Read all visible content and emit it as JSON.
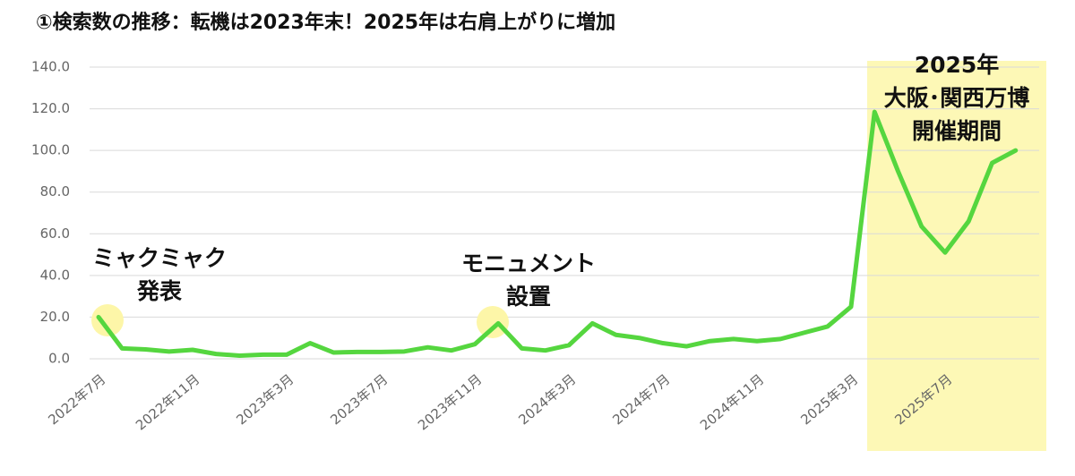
{
  "chart_data": {
    "type": "line",
    "title": "①検索数の推移：転機は2023年末！2025年は右肩上がりに増加",
    "categories": [
      "2022年7月",
      null,
      null,
      null,
      "2022年11月",
      null,
      null,
      null,
      "2023年3月",
      null,
      null,
      null,
      "2023年7月",
      null,
      null,
      null,
      "2023年11月",
      null,
      null,
      null,
      "2024年3月",
      null,
      null,
      null,
      "2024年7月",
      null,
      null,
      null,
      "2024年11月",
      null,
      null,
      null,
      "2025年3月",
      null,
      null,
      null,
      "2025年7月",
      null,
      null,
      null
    ],
    "values": [
      20,
      5,
      4.5,
      3.5,
      4.3,
      2.3,
      1.5,
      2,
      2,
      7.5,
      3,
      3.3,
      3.3,
      3.5,
      5.5,
      4,
      7,
      17,
      5,
      4,
      6.5,
      17,
      11.5,
      10,
      7.5,
      6,
      8.5,
      9.5,
      8.5,
      9.5,
      12.5,
      15.5,
      25,
      118.5,
      90,
      63.5,
      51,
      66,
      94,
      100
    ],
    "color": "#55d63f",
    "ylim": [
      0,
      140
    ],
    "yticks": [
      {
        "value": 0,
        "label": "0.0"
      },
      {
        "value": 20,
        "label": "20.0"
      },
      {
        "value": 40,
        "label": "40.0"
      },
      {
        "value": 60,
        "label": "60.0"
      },
      {
        "value": 80,
        "label": "80.0"
      },
      {
        "value": 100,
        "label": "100.0"
      },
      {
        "value": 120,
        "label": "120.0"
      },
      {
        "value": 140,
        "label": "140.0"
      }
    ],
    "grid": true,
    "annotations": [
      {
        "lines": [
          "ミャクミャク",
          "発表"
        ]
      },
      {
        "lines": [
          "モニュメント",
          "設置"
        ]
      },
      {
        "lines": [
          "2025年",
          "大阪･関西万博",
          "開催期間"
        ]
      }
    ]
  }
}
